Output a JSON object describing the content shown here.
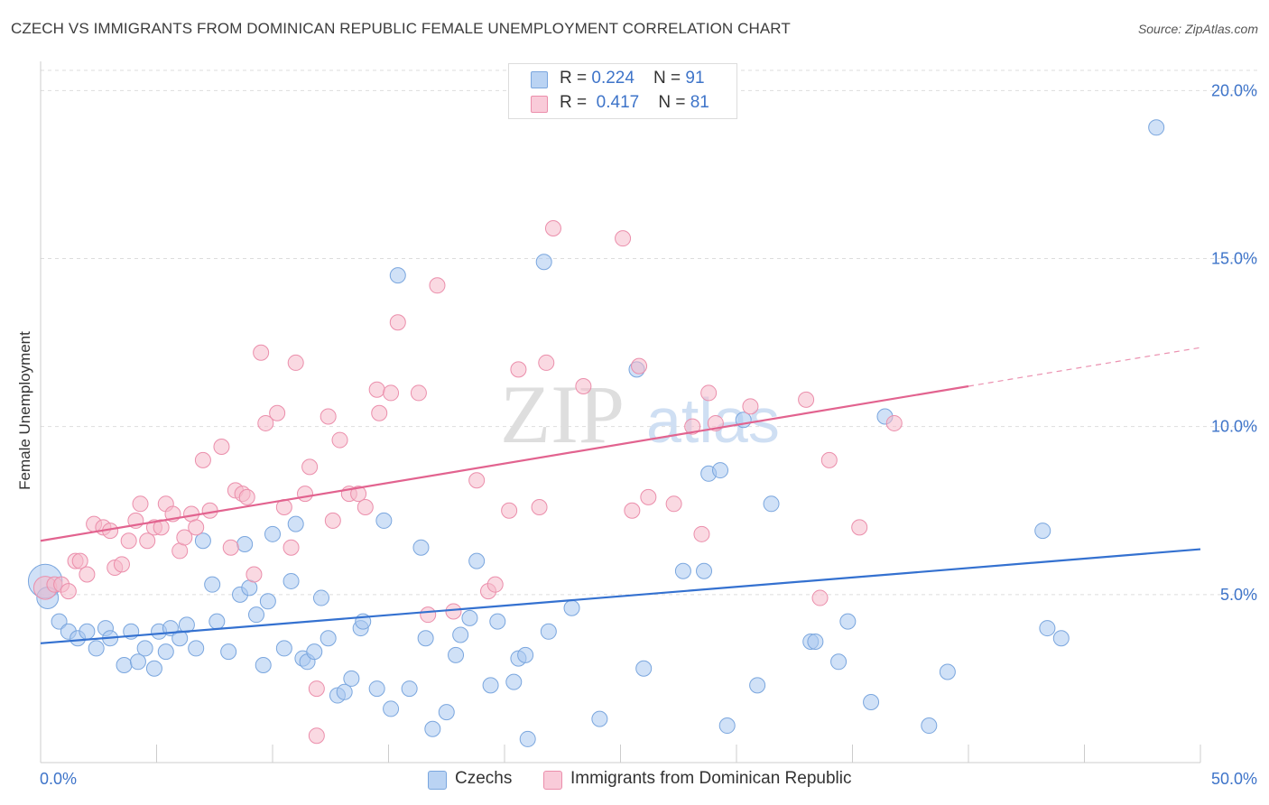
{
  "title": "CZECH VS IMMIGRANTS FROM DOMINICAN REPUBLIC FEMALE UNEMPLOYMENT CORRELATION CHART",
  "source": "Source: ZipAtlas.com",
  "watermark": {
    "zip": "ZIP",
    "atlas": "atlas"
  },
  "colors": {
    "blue_fill": "#a9c8f0",
    "blue_stroke": "#7aa6de",
    "blue_line": "#3471d0",
    "pink_fill": "#f6b9cb",
    "pink_stroke": "#eb8eab",
    "pink_line": "#e2638f",
    "value_text": "#3e74c9",
    "grid": "#dddddd"
  },
  "legend_top": [
    {
      "r_label": "R = ",
      "r_value": "0.224",
      "n_label": "N = ",
      "n_value": "91",
      "series": "Czechs"
    },
    {
      "r_label": "R = ",
      "r_value": "0.417",
      "n_label": "N = ",
      "n_value": "81",
      "series": "Immigrants from Dominican Republic"
    }
  ],
  "legend_bottom": [
    {
      "label": "Czechs"
    },
    {
      "label": "Immigrants from Dominican Republic"
    }
  ],
  "chart_data": {
    "type": "scatter",
    "title": "CZECH VS IMMIGRANTS FROM DOMINICAN REPUBLIC FEMALE UNEMPLOYMENT CORRELATION CHART",
    "xlabel": "",
    "ylabel": "Female Unemployment",
    "xlim": [
      0,
      50
    ],
    "ylim": [
      0,
      20.6
    ],
    "x_tick_labels": [
      "0.0%",
      "50.0%"
    ],
    "y_ticks": [
      5,
      10,
      15,
      20
    ],
    "y_tick_labels": [
      "5.0%",
      "10.0%",
      "15.0%",
      "20.0%"
    ],
    "grid": "horizontal dashed",
    "legend_position": "top-center",
    "series": [
      {
        "name": "Czechs",
        "trend": {
          "x": [
            0,
            50
          ],
          "y": [
            3.55,
            6.35
          ]
        },
        "points": [
          [
            0.2,
            5.4,
            2.2
          ],
          [
            0.3,
            4.9,
            1.4
          ],
          [
            0.8,
            4.2,
            1
          ],
          [
            1.2,
            3.9,
            1
          ],
          [
            1.6,
            3.7,
            1
          ],
          [
            2.0,
            3.9,
            1
          ],
          [
            2.4,
            3.4,
            1
          ],
          [
            2.8,
            4.0,
            1
          ],
          [
            3.0,
            3.7,
            1
          ],
          [
            3.6,
            2.9,
            1
          ],
          [
            3.9,
            3.9,
            1
          ],
          [
            4.2,
            3.0,
            1
          ],
          [
            4.5,
            3.4,
            1
          ],
          [
            4.9,
            2.8,
            1
          ],
          [
            5.1,
            3.9,
            1
          ],
          [
            5.4,
            3.3,
            1
          ],
          [
            5.6,
            4.0,
            1
          ],
          [
            6.0,
            3.7,
            1
          ],
          [
            6.3,
            4.1,
            1
          ],
          [
            6.7,
            3.4,
            1
          ],
          [
            7.0,
            6.6,
            1
          ],
          [
            7.4,
            5.3,
            1
          ],
          [
            7.6,
            4.2,
            1
          ],
          [
            8.1,
            3.3,
            1
          ],
          [
            8.6,
            5.0,
            1
          ],
          [
            8.8,
            6.5,
            1
          ],
          [
            9.0,
            5.2,
            1
          ],
          [
            9.3,
            4.4,
            1
          ],
          [
            9.6,
            2.9,
            1
          ],
          [
            9.8,
            4.8,
            1
          ],
          [
            10.0,
            6.8,
            1
          ],
          [
            10.5,
            3.4,
            1
          ],
          [
            10.8,
            5.4,
            1
          ],
          [
            11.0,
            7.1,
            1
          ],
          [
            11.3,
            3.1,
            1
          ],
          [
            11.5,
            3.0,
            1
          ],
          [
            11.8,
            3.3,
            1
          ],
          [
            12.1,
            4.9,
            1
          ],
          [
            12.4,
            3.7,
            1
          ],
          [
            12.8,
            2.0,
            1
          ],
          [
            13.1,
            2.1,
            1
          ],
          [
            13.4,
            2.5,
            1
          ],
          [
            13.8,
            4.0,
            1
          ],
          [
            13.9,
            4.2,
            1
          ],
          [
            14.5,
            2.2,
            1
          ],
          [
            14.8,
            7.2,
            1
          ],
          [
            15.1,
            1.6,
            1
          ],
          [
            15.4,
            14.5,
            1
          ],
          [
            15.9,
            2.2,
            1
          ],
          [
            16.4,
            6.4,
            1
          ],
          [
            16.6,
            3.7,
            1
          ],
          [
            16.9,
            1.0,
            1
          ],
          [
            17.5,
            1.5,
            1
          ],
          [
            17.9,
            3.2,
            1
          ],
          [
            18.1,
            3.8,
            1
          ],
          [
            18.5,
            4.3,
            1
          ],
          [
            18.8,
            6.0,
            1
          ],
          [
            19.4,
            2.3,
            1
          ],
          [
            19.7,
            4.2,
            1
          ],
          [
            20.4,
            2.4,
            1
          ],
          [
            20.6,
            3.1,
            1
          ],
          [
            21.0,
            0.7,
            1
          ],
          [
            20.9,
            3.2,
            1
          ],
          [
            21.7,
            14.9,
            1
          ],
          [
            21.9,
            3.9,
            1
          ],
          [
            22.9,
            4.6,
            1
          ],
          [
            24.1,
            1.3,
            1
          ],
          [
            25.7,
            11.7,
            1
          ],
          [
            26.0,
            2.8,
            1
          ],
          [
            27.7,
            5.7,
            1
          ],
          [
            28.6,
            5.7,
            1
          ],
          [
            28.8,
            8.6,
            1
          ],
          [
            29.3,
            8.7,
            1
          ],
          [
            29.6,
            1.1,
            1
          ],
          [
            30.3,
            10.2,
            1
          ],
          [
            30.9,
            2.3,
            1
          ],
          [
            31.5,
            7.7,
            1
          ],
          [
            33.2,
            3.6,
            1
          ],
          [
            33.4,
            3.6,
            1
          ],
          [
            34.4,
            3.0,
            1
          ],
          [
            34.8,
            4.2,
            1
          ],
          [
            35.8,
            1.8,
            1
          ],
          [
            36.4,
            10.3,
            1
          ],
          [
            38.3,
            1.1,
            1
          ],
          [
            39.1,
            2.7,
            1
          ],
          [
            43.2,
            6.9,
            1
          ],
          [
            43.4,
            4.0,
            1
          ],
          [
            44.0,
            3.7,
            1
          ],
          [
            48.1,
            18.9,
            1
          ]
        ]
      },
      {
        "name": "Immigrants from Dominican Republic",
        "trend": {
          "x": [
            0,
            40
          ],
          "y": [
            6.6,
            11.2
          ]
        },
        "trend_dashed": {
          "x": [
            40,
            50
          ],
          "y": [
            11.2,
            12.35
          ]
        },
        "points": [
          [
            0.2,
            5.2,
            1.5
          ],
          [
            0.6,
            5.3,
            1
          ],
          [
            0.9,
            5.3,
            1
          ],
          [
            1.2,
            5.1,
            1
          ],
          [
            1.5,
            6.0,
            1
          ],
          [
            1.7,
            6.0,
            1
          ],
          [
            2.0,
            5.6,
            1
          ],
          [
            2.3,
            7.1,
            1
          ],
          [
            2.7,
            7.0,
            1
          ],
          [
            3.0,
            6.9,
            1
          ],
          [
            3.2,
            5.8,
            1
          ],
          [
            3.5,
            5.9,
            1
          ],
          [
            3.8,
            6.6,
            1
          ],
          [
            4.1,
            7.2,
            1
          ],
          [
            4.3,
            7.7,
            1
          ],
          [
            4.6,
            6.6,
            1
          ],
          [
            4.9,
            7.0,
            1
          ],
          [
            5.2,
            7.0,
            1
          ],
          [
            5.4,
            7.7,
            1
          ],
          [
            5.7,
            7.4,
            1
          ],
          [
            6.0,
            6.3,
            1
          ],
          [
            6.2,
            6.7,
            1
          ],
          [
            6.5,
            7.4,
            1
          ],
          [
            6.7,
            7.0,
            1
          ],
          [
            7.0,
            9.0,
            1
          ],
          [
            7.3,
            7.5,
            1
          ],
          [
            7.8,
            9.4,
            1
          ],
          [
            8.2,
            6.4,
            1
          ],
          [
            8.4,
            8.1,
            1
          ],
          [
            8.7,
            8.0,
            1
          ],
          [
            8.9,
            7.9,
            1
          ],
          [
            9.2,
            5.6,
            1
          ],
          [
            9.5,
            12.2,
            1
          ],
          [
            9.7,
            10.1,
            1
          ],
          [
            10.2,
            10.4,
            1
          ],
          [
            10.5,
            7.6,
            1
          ],
          [
            10.8,
            6.4,
            1
          ],
          [
            11.0,
            11.9,
            1
          ],
          [
            11.4,
            8.0,
            1
          ],
          [
            11.6,
            8.8,
            1
          ],
          [
            11.9,
            2.2,
            1
          ],
          [
            11.9,
            0.8,
            1
          ],
          [
            12.4,
            10.3,
            1
          ],
          [
            12.6,
            7.2,
            1
          ],
          [
            12.9,
            9.6,
            1
          ],
          [
            13.3,
            8.0,
            1
          ],
          [
            13.7,
            8.0,
            1
          ],
          [
            14.0,
            7.6,
            1
          ],
          [
            14.5,
            11.1,
            1
          ],
          [
            14.6,
            10.4,
            1
          ],
          [
            15.1,
            11.0,
            1
          ],
          [
            15.4,
            13.1,
            1
          ],
          [
            16.3,
            11.0,
            1
          ],
          [
            16.7,
            4.4,
            1
          ],
          [
            17.1,
            14.2,
            1
          ],
          [
            17.8,
            4.5,
            1
          ],
          [
            18.8,
            8.4,
            1
          ],
          [
            19.3,
            5.1,
            1
          ],
          [
            19.6,
            5.3,
            1
          ],
          [
            20.2,
            7.5,
            1
          ],
          [
            20.6,
            11.7,
            1
          ],
          [
            21.5,
            7.6,
            1
          ],
          [
            21.8,
            11.9,
            1
          ],
          [
            22.1,
            15.9,
            1
          ],
          [
            23.4,
            11.2,
            1
          ],
          [
            25.1,
            15.6,
            1
          ],
          [
            25.5,
            7.5,
            1
          ],
          [
            25.8,
            11.8,
            1
          ],
          [
            26.2,
            7.9,
            1
          ],
          [
            27.3,
            7.7,
            1
          ],
          [
            28.1,
            10.0,
            1
          ],
          [
            28.5,
            6.8,
            1
          ],
          [
            28.8,
            11.0,
            1
          ],
          [
            29.1,
            10.1,
            1
          ],
          [
            30.6,
            10.6,
            1
          ],
          [
            33.0,
            10.8,
            1
          ],
          [
            33.6,
            4.9,
            1
          ],
          [
            34.0,
            9.0,
            1
          ],
          [
            35.3,
            7.0,
            1
          ],
          [
            36.8,
            10.1,
            1
          ]
        ]
      }
    ]
  }
}
